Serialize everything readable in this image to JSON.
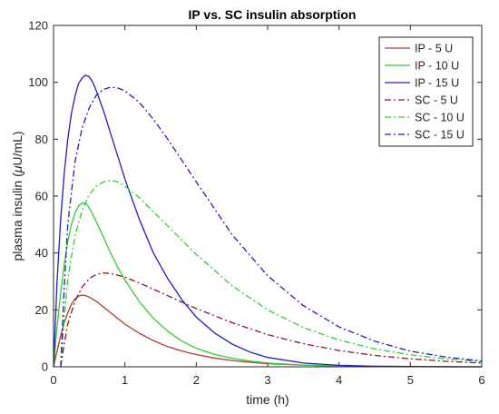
{
  "chart_data": {
    "type": "line",
    "title": "IP vs. SC insulin absorption",
    "xlabel": "time (h)",
    "ylabel_prefix": "plasma insulin (",
    "ylabel_mu": "μ",
    "ylabel_suffix": "U/mL)",
    "xlim": [
      0,
      6
    ],
    "ylim": [
      0,
      120
    ],
    "xticks": [
      0,
      1,
      2,
      3,
      4,
      5,
      6
    ],
    "yticks": [
      0,
      20,
      40,
      60,
      80,
      100,
      120
    ],
    "grid": false,
    "legend_position": "top-right",
    "series": [
      {
        "name": "IP - 5 U",
        "color": "#b03a2e",
        "dash": "solid",
        "x": [
          0,
          0.05,
          0.1,
          0.15,
          0.2,
          0.25,
          0.3,
          0.35,
          0.4,
          0.45,
          0.5,
          0.6,
          0.7,
          0.8,
          0.9,
          1.0,
          1.2,
          1.4,
          1.6,
          1.8,
          2.0,
          2.25,
          2.5,
          2.75,
          3.0,
          3.5,
          4.0,
          4.5,
          5.0,
          5.5,
          6.0
        ],
        "y": [
          0,
          5.5,
          11,
          15.5,
          19,
          22,
          23.8,
          24.8,
          25.2,
          25,
          24.5,
          23,
          21,
          19,
          17,
          15,
          11.8,
          9.2,
          7.1,
          5.5,
          4.3,
          3.1,
          2.2,
          1.6,
          1.1,
          0.6,
          0.3,
          0.15,
          0.1,
          0.05,
          0
        ]
      },
      {
        "name": "IP - 10 U",
        "color": "#33cc33",
        "dash": "solid",
        "x": [
          0,
          0.05,
          0.1,
          0.15,
          0.2,
          0.25,
          0.3,
          0.35,
          0.4,
          0.45,
          0.5,
          0.6,
          0.7,
          0.8,
          0.9,
          1.0,
          1.2,
          1.4,
          1.6,
          1.8,
          2.0,
          2.25,
          2.5,
          2.75,
          3.0,
          3.5,
          4.0,
          4.5,
          5.0,
          5.5,
          6.0
        ],
        "y": [
          0,
          14,
          26,
          36,
          44,
          50,
          54,
          56.5,
          57.6,
          57.5,
          56,
          51,
          45.5,
          40,
          35,
          30.5,
          23,
          17,
          12.5,
          9,
          6.5,
          4.4,
          3,
          2,
          1.3,
          0.6,
          0.25,
          0.1,
          0.05,
          0,
          0
        ]
      },
      {
        "name": "IP - 15 U",
        "color": "#1f1fbf",
        "dash": "solid",
        "x": [
          0,
          0.05,
          0.1,
          0.15,
          0.2,
          0.25,
          0.3,
          0.35,
          0.4,
          0.45,
          0.5,
          0.55,
          0.6,
          0.7,
          0.8,
          0.9,
          1.0,
          1.2,
          1.4,
          1.6,
          1.8,
          2.0,
          2.25,
          2.5,
          2.75,
          3.0,
          3.5,
          4.0,
          4.5,
          5.0,
          5.5,
          6.0
        ],
        "y": [
          0,
          30,
          52,
          68,
          80,
          89,
          95,
          99.5,
          101.5,
          102.5,
          102,
          100,
          97,
          90,
          82,
          74,
          66,
          52,
          40,
          31,
          23.5,
          17.5,
          12,
          8,
          5.2,
          3.3,
          1.3,
          0.5,
          0.2,
          0.1,
          0,
          0
        ]
      },
      {
        "name": "SC - 5 U",
        "color": "#8b1a1a",
        "dash": "dashdot",
        "x": [
          0.1,
          0.15,
          0.2,
          0.3,
          0.4,
          0.5,
          0.6,
          0.7,
          0.8,
          0.9,
          1.0,
          1.2,
          1.4,
          1.6,
          1.8,
          2.0,
          2.5,
          3.0,
          3.5,
          4.0,
          4.5,
          5.0,
          5.5,
          6.0
        ],
        "y": [
          0,
          8,
          15,
          23,
          28,
          31,
          32.5,
          33,
          32.8,
          32.2,
          31.5,
          29.5,
          27.3,
          25,
          22.7,
          20.5,
          15.5,
          11.3,
          8.1,
          5.7,
          4,
          2.8,
          1.9,
          1.3
        ]
      },
      {
        "name": "SC - 10 U",
        "color": "#33cc33",
        "dash": "dashdot",
        "x": [
          0.1,
          0.15,
          0.2,
          0.3,
          0.4,
          0.5,
          0.6,
          0.7,
          0.8,
          0.9,
          1.0,
          1.2,
          1.4,
          1.6,
          1.8,
          2.0,
          2.5,
          3.0,
          3.5,
          4.0,
          4.5,
          5.0,
          5.5,
          6.0
        ],
        "y": [
          0,
          17,
          31,
          46,
          55,
          60.5,
          63.5,
          65,
          65.5,
          65,
          63.5,
          59.5,
          54.5,
          49.5,
          44.5,
          39.5,
          28.5,
          20,
          13.8,
          9.4,
          6.3,
          4.2,
          2.8,
          1.8
        ]
      },
      {
        "name": "SC - 15 U",
        "color": "#1f1fbf",
        "dash": "dashdot",
        "x": [
          0.1,
          0.15,
          0.2,
          0.3,
          0.4,
          0.5,
          0.6,
          0.7,
          0.8,
          0.9,
          1.0,
          1.2,
          1.4,
          1.6,
          1.8,
          2.0,
          2.5,
          3.0,
          3.5,
          4.0,
          4.5,
          5.0,
          5.5,
          6.0
        ],
        "y": [
          0,
          28,
          50,
          72,
          84,
          91,
          95.5,
          97.5,
          98.3,
          98,
          97,
          93,
          87,
          80,
          72.5,
          65,
          46.5,
          32,
          21.5,
          14,
          9,
          5.5,
          3.4,
          2
        ]
      }
    ]
  }
}
